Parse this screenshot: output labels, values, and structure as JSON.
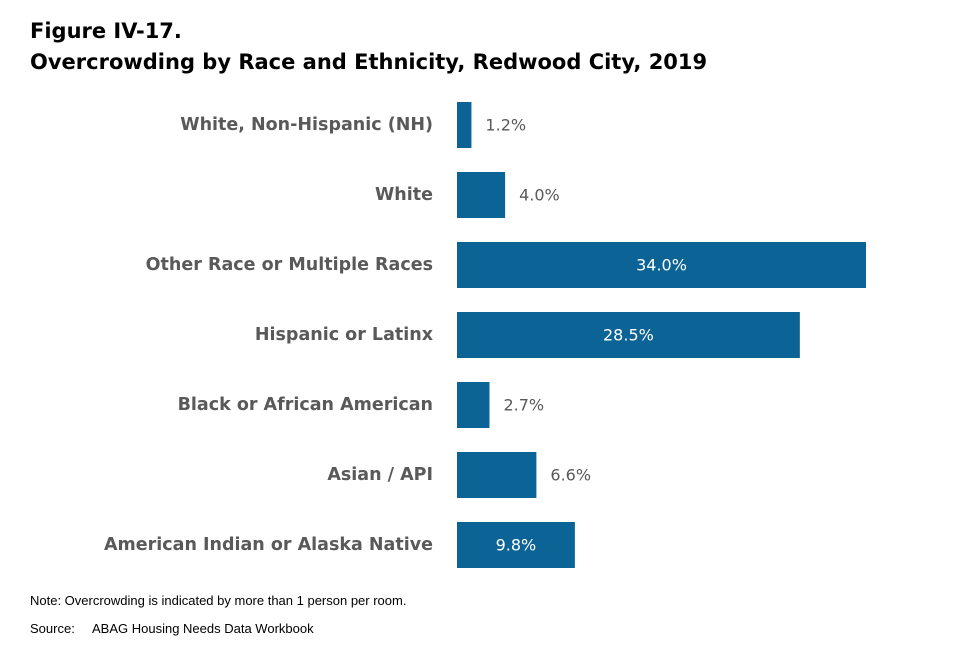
{
  "figure_label": "Figure IV-17.",
  "note": "Note: Overcrowding is indicated by more than 1 person per room.",
  "source_label": "Source:",
  "source_text": "ABAG Housing Needs Data Workbook",
  "colors": {
    "bar": "#0b6396",
    "inside_label": "#ffffff",
    "outside_label": "#595959",
    "category_label": "#595959"
  },
  "chart_data": {
    "type": "bar",
    "orientation": "horizontal",
    "title": "Overcrowding by Race and Ethnicity, Redwood City, 2019",
    "xlabel": "",
    "ylabel": "",
    "unit": "%",
    "categories": [
      "White, Non-Hispanic (NH)",
      "White",
      "Other Race or Multiple Races",
      "Hispanic or Latinx",
      "Black or African American",
      "Asian / API",
      "American Indian or Alaska Native"
    ],
    "values": [
      1.2,
      4.0,
      34.0,
      28.5,
      2.7,
      6.6,
      9.8
    ],
    "value_labels": [
      "1.2%",
      "4.0%",
      "34.0%",
      "28.5%",
      "2.7%",
      "6.6%",
      "9.8%"
    ],
    "xlim": [
      0,
      34.0
    ],
    "grid": false,
    "legend": "none"
  }
}
